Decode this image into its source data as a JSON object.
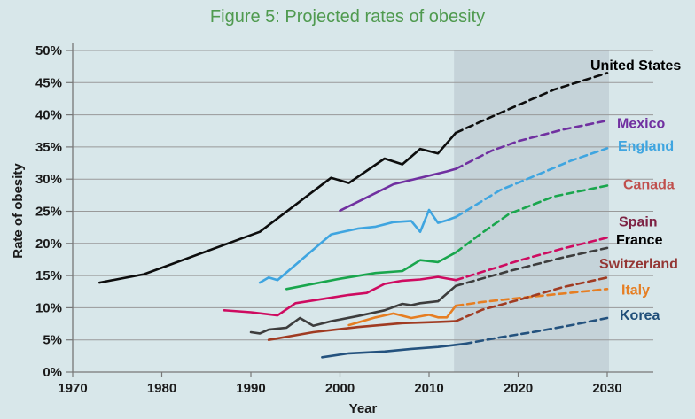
{
  "chart_data": {
    "type": "line",
    "title": "Figure 5: Projected rates of obesity",
    "xlabel": "Year",
    "ylabel": "Rate of obesity",
    "xlim": [
      1970,
      2035
    ],
    "ylim": [
      0,
      50
    ],
    "grid": true,
    "x_ticks": [
      "1970",
      "1980",
      "1990",
      "2000",
      "2010",
      "2020",
      "2030"
    ],
    "y_ticks": [
      "0%",
      "5%",
      "10%",
      "15%",
      "20%",
      "25%",
      "30%",
      "35%",
      "40%",
      "45%",
      "50%"
    ],
    "projection_band": {
      "start_year": 2013,
      "end_year": 2030,
      "color": "#c5d3d9"
    },
    "legend_position": "right-edge-labels",
    "colors": {
      "background": "#d8e7ea",
      "gridline": "#999999",
      "axis": "#777777",
      "tick_text": "#1a1a1a",
      "title": "#4f9a4f"
    },
    "series": [
      {
        "name": "United States",
        "line_color": "#0d0d0d",
        "label_color": "#000000",
        "label_x": 666,
        "label_y_pct": 47.7,
        "solid": [
          [
            1973,
            13.9
          ],
          [
            1978,
            15.2
          ],
          [
            1991,
            21.8
          ],
          [
            1999,
            30.2
          ],
          [
            2001,
            29.4
          ],
          [
            2005,
            33.2
          ],
          [
            2007,
            32.3
          ],
          [
            2009,
            34.7
          ],
          [
            2011,
            34.0
          ],
          [
            2013,
            37.2
          ]
        ],
        "dashed": [
          [
            2013,
            37.2
          ],
          [
            2018,
            40.3
          ],
          [
            2024,
            43.9
          ],
          [
            2030,
            46.5
          ]
        ]
      },
      {
        "name": "Mexico",
        "line_color": "#7030a0",
        "label_color": "#7030a0",
        "label_x": 696,
        "label_y_pct": 38.7,
        "solid": [
          [
            2000,
            25.1
          ],
          [
            2006,
            29.2
          ],
          [
            2012,
            31.2
          ],
          [
            2013,
            31.6
          ]
        ],
        "dashed": [
          [
            2013,
            31.6
          ],
          [
            2017,
            34.4
          ],
          [
            2020,
            35.9
          ],
          [
            2025,
            37.7
          ],
          [
            2030,
            39.1
          ]
        ]
      },
      {
        "name": "England",
        "line_color": "#3fa5e0",
        "label_color": "#3fa5e0",
        "label_x": 697,
        "label_y_pct": 35.2,
        "solid": [
          [
            1991,
            13.9
          ],
          [
            1992,
            14.7
          ],
          [
            1993,
            14.3
          ],
          [
            1999,
            21.4
          ],
          [
            2002,
            22.3
          ],
          [
            2004,
            22.6
          ],
          [
            2006,
            23.3
          ],
          [
            2008,
            23.5
          ],
          [
            2009,
            21.8
          ],
          [
            2010,
            25.2
          ],
          [
            2011,
            23.2
          ],
          [
            2012,
            23.6
          ],
          [
            2013,
            24.1
          ]
        ],
        "dashed": [
          [
            2013,
            24.1
          ],
          [
            2018,
            28.3
          ],
          [
            2021,
            30.0
          ],
          [
            2026,
            32.9
          ],
          [
            2030,
            34.8
          ]
        ]
      },
      {
        "name": "Canada",
        "line_color": "#19a64d",
        "label_color": "#c0504d",
        "label_x": 703,
        "label_y_pct": 29.2,
        "solid": [
          [
            1994,
            12.9
          ],
          [
            2000,
            14.5
          ],
          [
            2004,
            15.4
          ],
          [
            2007,
            15.7
          ],
          [
            2009,
            17.4
          ],
          [
            2011,
            17.1
          ],
          [
            2013,
            18.6
          ]
        ],
        "dashed": [
          [
            2013,
            18.6
          ],
          [
            2016,
            21.7
          ],
          [
            2019,
            24.6
          ],
          [
            2024,
            27.3
          ],
          [
            2030,
            29.0
          ]
        ]
      },
      {
        "name": "Spain",
        "line_color": "#ce0b60",
        "label_color": "#7d2243",
        "label_x": 698,
        "label_y_pct": 23.4,
        "solid": [
          [
            1987,
            9.6
          ],
          [
            1990,
            9.3
          ],
          [
            1993,
            8.8
          ],
          [
            1995,
            10.7
          ],
          [
            2001,
            12.0
          ],
          [
            2003,
            12.3
          ],
          [
            2005,
            13.7
          ],
          [
            2007,
            14.2
          ],
          [
            2009,
            14.4
          ],
          [
            2011,
            14.8
          ],
          [
            2013,
            14.3
          ]
        ],
        "dashed": [
          [
            2013,
            14.3
          ],
          [
            2017,
            16.0
          ],
          [
            2020,
            17.3
          ],
          [
            2025,
            19.2
          ],
          [
            2030,
            20.9
          ]
        ]
      },
      {
        "name": "France",
        "line_color": "#3d3d3d",
        "label_color": "#000000",
        "label_x": 695,
        "label_y_pct": 20.6,
        "solid": [
          [
            1990,
            6.2
          ],
          [
            1991,
            6.0
          ],
          [
            1992,
            6.6
          ],
          [
            1994,
            6.9
          ],
          [
            1995.5,
            8.4
          ],
          [
            1997,
            7.2
          ],
          [
            1999,
            7.9
          ],
          [
            2002,
            8.7
          ],
          [
            2005,
            9.6
          ],
          [
            2007,
            10.6
          ],
          [
            2008,
            10.4
          ],
          [
            2009,
            10.7
          ],
          [
            2011,
            11.0
          ],
          [
            2013,
            13.4
          ]
        ],
        "dashed": [
          [
            2013,
            13.4
          ],
          [
            2019,
            15.7
          ],
          [
            2025,
            17.8
          ],
          [
            2030,
            19.3
          ]
        ]
      },
      {
        "name": "Switzerland",
        "line_color": "#a03b22",
        "label_color": "#943634",
        "label_x": 676,
        "label_y_pct": 16.9,
        "solid": [
          [
            1992,
            5.0
          ],
          [
            1997,
            6.2
          ],
          [
            2002,
            7.0
          ],
          [
            2007,
            7.6
          ],
          [
            2011,
            7.8
          ],
          [
            2013,
            7.9
          ]
        ],
        "dashed": [
          [
            2013,
            7.9
          ],
          [
            2016,
            9.7
          ],
          [
            2020,
            11.2
          ],
          [
            2025,
            13.2
          ],
          [
            2030,
            14.7
          ]
        ]
      },
      {
        "name": "Italy",
        "line_color": "#e67e22",
        "label_color": "#e67e22",
        "label_x": 701,
        "label_y_pct": 12.8,
        "solid": [
          [
            2001,
            7.3
          ],
          [
            2004,
            8.5
          ],
          [
            2006,
            9.1
          ],
          [
            2008,
            8.4
          ],
          [
            2010,
            8.9
          ],
          [
            2011,
            8.5
          ],
          [
            2012,
            8.5
          ],
          [
            2013,
            10.3
          ]
        ],
        "dashed": [
          [
            2013,
            10.3
          ],
          [
            2016,
            10.9
          ],
          [
            2020,
            11.5
          ],
          [
            2025,
            12.2
          ],
          [
            2030,
            12.9
          ]
        ]
      },
      {
        "name": "Korea",
        "line_color": "#24527e",
        "label_color": "#1f4e79",
        "label_x": 699,
        "label_y_pct": 8.9,
        "solid": [
          [
            1998,
            2.3
          ],
          [
            2001,
            2.9
          ],
          [
            2005,
            3.2
          ],
          [
            2008,
            3.6
          ],
          [
            2011,
            3.9
          ],
          [
            2014,
            4.4
          ]
        ],
        "dashed": [
          [
            2014,
            4.4
          ],
          [
            2018,
            5.4
          ],
          [
            2022,
            6.3
          ],
          [
            2026,
            7.3
          ],
          [
            2030,
            8.4
          ]
        ]
      }
    ]
  }
}
